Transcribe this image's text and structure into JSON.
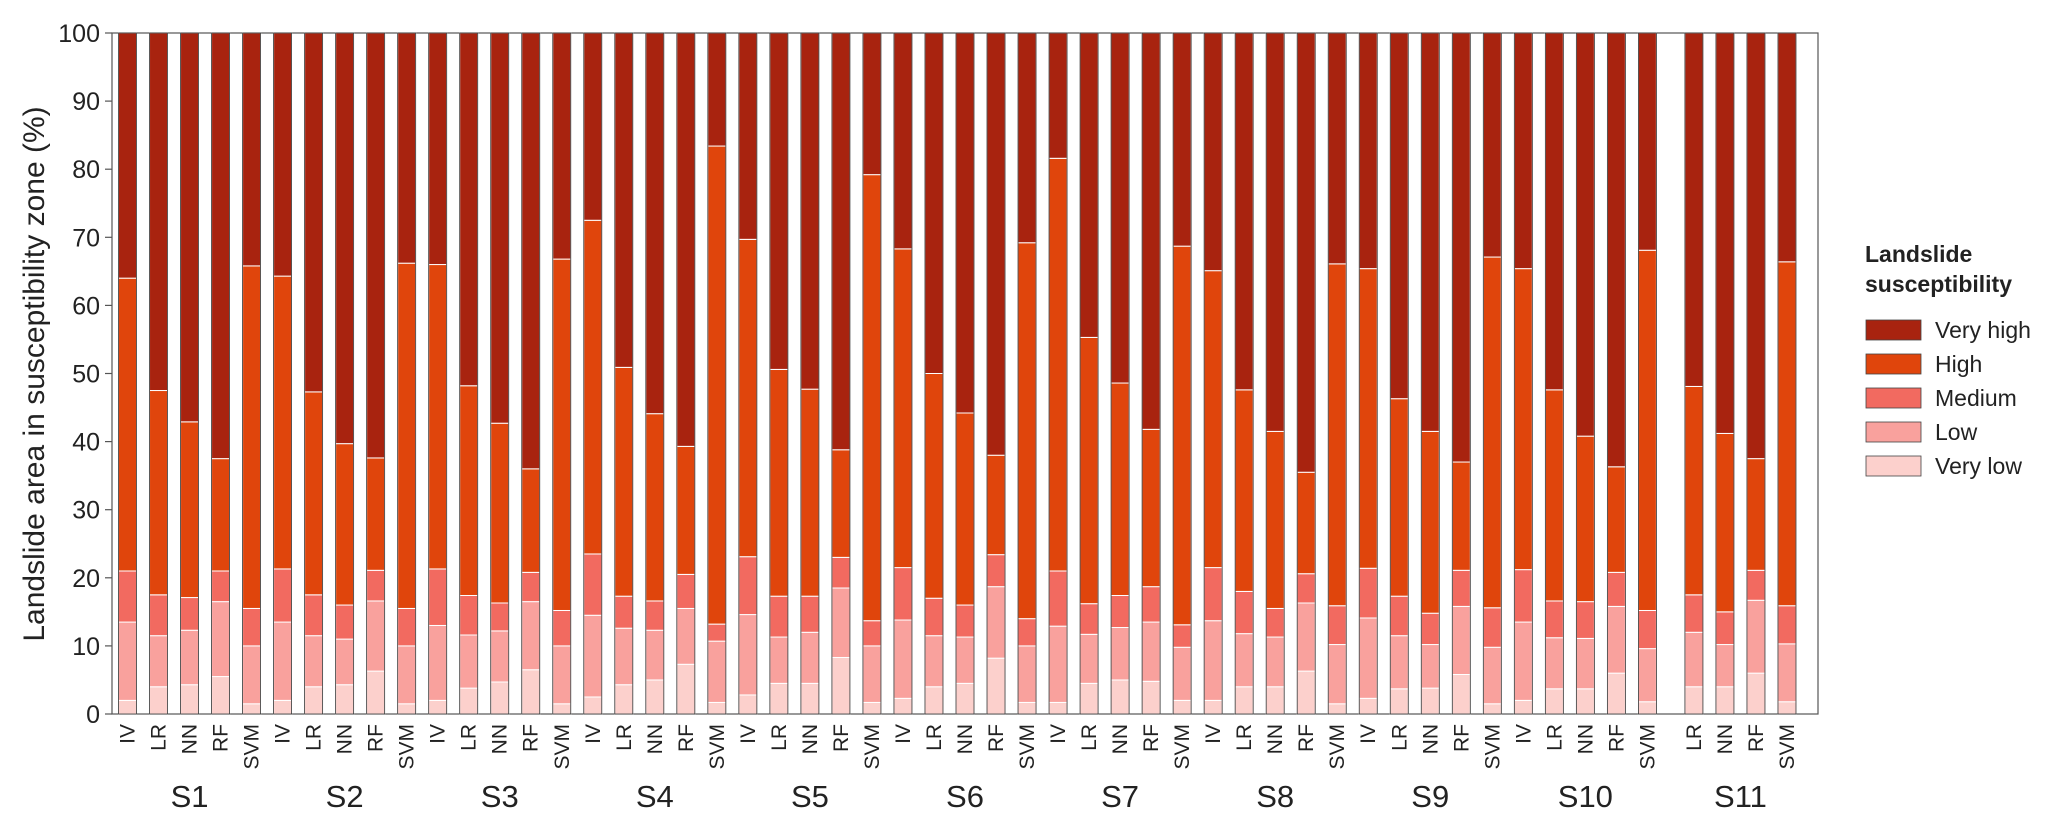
{
  "chart_data": {
    "type": "bar",
    "stacked": true,
    "ylabel": "Landslide area in susceptibility zone (%)",
    "ylim": [
      0,
      100
    ],
    "yticks": [
      0,
      10,
      20,
      30,
      40,
      50,
      60,
      70,
      80,
      90,
      100
    ],
    "grid": false,
    "legend": {
      "title": "Landslide susceptibility",
      "placement": "right",
      "entries": [
        "Very high",
        "High",
        "Medium",
        "Low",
        "Very low"
      ]
    },
    "colors": {
      "Very low": "#fcd0cc",
      "Low": "#f9a19d",
      "Medium": "#f26a60",
      "High": "#e0450c",
      "Very high": "#a8230f"
    },
    "stack_order": [
      "Very low",
      "Low",
      "Medium",
      "High",
      "Very high"
    ],
    "groups": [
      {
        "name": "S1",
        "bars": [
          {
            "model": "IV",
            "values": [
              2,
              11.5,
              7.5,
              43,
              36
            ]
          },
          {
            "model": "LR",
            "values": [
              4,
              7.5,
              6,
              30,
              52.5
            ]
          },
          {
            "model": "NN",
            "values": [
              4.3,
              8,
              4.8,
              25.8,
              57.1
            ]
          },
          {
            "model": "RF",
            "values": [
              5.5,
              11,
              4.5,
              16.5,
              62.5
            ]
          },
          {
            "model": "SVM",
            "values": [
              1.5,
              8.5,
              5.5,
              50.3,
              34.2
            ]
          }
        ]
      },
      {
        "name": "S2",
        "bars": [
          {
            "model": "IV",
            "values": [
              2,
              11.5,
              7.8,
              43,
              35.7
            ]
          },
          {
            "model": "LR",
            "values": [
              4,
              7.5,
              6,
              29.8,
              52.7
            ]
          },
          {
            "model": "NN",
            "values": [
              4.3,
              6.7,
              5,
              23.7,
              60.3
            ]
          },
          {
            "model": "RF",
            "values": [
              6.3,
              10.3,
              4.5,
              16.5,
              62.4
            ]
          },
          {
            "model": "SVM",
            "values": [
              1.5,
              8.5,
              5.5,
              50.7,
              33.8
            ]
          }
        ]
      },
      {
        "name": "S3",
        "bars": [
          {
            "model": "IV",
            "values": [
              2,
              11,
              8.3,
              44.7,
              34
            ]
          },
          {
            "model": "LR",
            "values": [
              3.8,
              7.8,
              5.8,
              30.8,
              51.8
            ]
          },
          {
            "model": "NN",
            "values": [
              4.7,
              7.5,
              4.1,
              26.4,
              57.3
            ]
          },
          {
            "model": "RF",
            "values": [
              6.5,
              10,
              4.3,
              15.2,
              64
            ]
          },
          {
            "model": "SVM",
            "values": [
              1.5,
              8.5,
              5.2,
              51.6,
              33.2
            ]
          }
        ]
      },
      {
        "name": "S4",
        "bars": [
          {
            "model": "IV",
            "values": [
              2.5,
              12,
              9,
              49,
              27.5
            ]
          },
          {
            "model": "LR",
            "values": [
              4.3,
              8.3,
              4.7,
              33.6,
              49.1
            ]
          },
          {
            "model": "NN",
            "values": [
              5,
              7.3,
              4.3,
              27.5,
              55.9
            ]
          },
          {
            "model": "RF",
            "values": [
              7.3,
              8.2,
              5,
              18.8,
              60.7
            ]
          },
          {
            "model": "SVM",
            "values": [
              1.7,
              9,
              2.5,
              70.2,
              16.6
            ]
          }
        ]
      },
      {
        "name": "S5",
        "bars": [
          {
            "model": "IV",
            "values": [
              2.8,
              11.8,
              8.5,
              46.6,
              30.3
            ]
          },
          {
            "model": "LR",
            "values": [
              4.5,
              6.8,
              6,
              33.3,
              49.4
            ]
          },
          {
            "model": "NN",
            "values": [
              4.5,
              7.5,
              5.3,
              30.4,
              52.3
            ]
          },
          {
            "model": "RF",
            "values": [
              8.3,
              10.2,
              4.5,
              15.8,
              61.2
            ]
          },
          {
            "model": "SVM",
            "values": [
              1.7,
              8.3,
              3.7,
              65.5,
              20.8
            ]
          }
        ]
      },
      {
        "name": "S6",
        "bars": [
          {
            "model": "IV",
            "values": [
              2.3,
              11.5,
              7.7,
              46.8,
              31.7
            ]
          },
          {
            "model": "LR",
            "values": [
              4,
              7.5,
              5.5,
              33,
              50
            ]
          },
          {
            "model": "NN",
            "values": [
              4.5,
              6.8,
              4.7,
              28.2,
              55.8
            ]
          },
          {
            "model": "RF",
            "values": [
              8.2,
              10.5,
              4.7,
              14.6,
              62
            ]
          },
          {
            "model": "SVM",
            "values": [
              1.7,
              8.3,
              4,
              55.2,
              30.8
            ]
          }
        ]
      },
      {
        "name": "S7",
        "bars": [
          {
            "model": "IV",
            "values": [
              1.7,
              11.2,
              8.1,
              60.6,
              18.4
            ]
          },
          {
            "model": "LR",
            "values": [
              4.5,
              7.2,
              4.5,
              39.1,
              44.7
            ]
          },
          {
            "model": "NN",
            "values": [
              5,
              7.7,
              4.7,
              31.2,
              51.4
            ]
          },
          {
            "model": "RF",
            "values": [
              4.8,
              8.7,
              5.2,
              23.1,
              58.2
            ]
          },
          {
            "model": "SVM",
            "values": [
              2,
              7.8,
              3.3,
              55.6,
              31.3
            ]
          }
        ]
      },
      {
        "name": "S8",
        "bars": [
          {
            "model": "IV",
            "values": [
              2,
              11.7,
              7.8,
              43.6,
              34.9
            ]
          },
          {
            "model": "LR",
            "values": [
              4,
              7.8,
              6.2,
              29.6,
              52.4
            ]
          },
          {
            "model": "NN",
            "values": [
              4,
              7.3,
              4.2,
              26,
              58.5
            ]
          },
          {
            "model": "RF",
            "values": [
              6.3,
              10,
              4.3,
              14.9,
              64.5
            ]
          },
          {
            "model": "SVM",
            "values": [
              1.5,
              8.7,
              5.7,
              50.2,
              33.9
            ]
          }
        ]
      },
      {
        "name": "S9",
        "bars": [
          {
            "model": "IV",
            "values": [
              2.3,
              11.8,
              7.3,
              44,
              34.6
            ]
          },
          {
            "model": "LR",
            "values": [
              3.7,
              7.8,
              5.8,
              29,
              53.7
            ]
          },
          {
            "model": "NN",
            "values": [
              3.8,
              6.4,
              4.6,
              26.7,
              58.5
            ]
          },
          {
            "model": "RF",
            "values": [
              5.8,
              10,
              5.3,
              15.9,
              63
            ]
          },
          {
            "model": "SVM",
            "values": [
              1.5,
              8.3,
              5.8,
              51.5,
              32.9
            ]
          }
        ]
      },
      {
        "name": "S10",
        "bars": [
          {
            "model": "IV",
            "values": [
              2,
              11.5,
              7.7,
              44.2,
              34.6
            ]
          },
          {
            "model": "LR",
            "values": [
              3.7,
              7.5,
              5.4,
              31,
              52.4
            ]
          },
          {
            "model": "NN",
            "values": [
              3.7,
              7.4,
              5.4,
              24.3,
              59.2
            ]
          },
          {
            "model": "RF",
            "values": [
              6,
              9.8,
              5,
              15.5,
              63.7
            ]
          },
          {
            "model": "SVM",
            "values": [
              1.8,
              7.8,
              5.6,
              52.9,
              31.9
            ]
          }
        ]
      },
      {
        "name": "S11",
        "bars": [
          {
            "model": "LR",
            "values": [
              4,
              8,
              5.5,
              30.6,
              51.9
            ]
          },
          {
            "model": "NN",
            "values": [
              4,
              6.2,
              4.8,
              26.2,
              58.8
            ]
          },
          {
            "model": "RF",
            "values": [
              6,
              10.7,
              4.4,
              16.4,
              62.5
            ]
          },
          {
            "model": "SVM",
            "values": [
              1.8,
              8.5,
              5.6,
              50.5,
              33.6
            ]
          }
        ]
      }
    ]
  }
}
